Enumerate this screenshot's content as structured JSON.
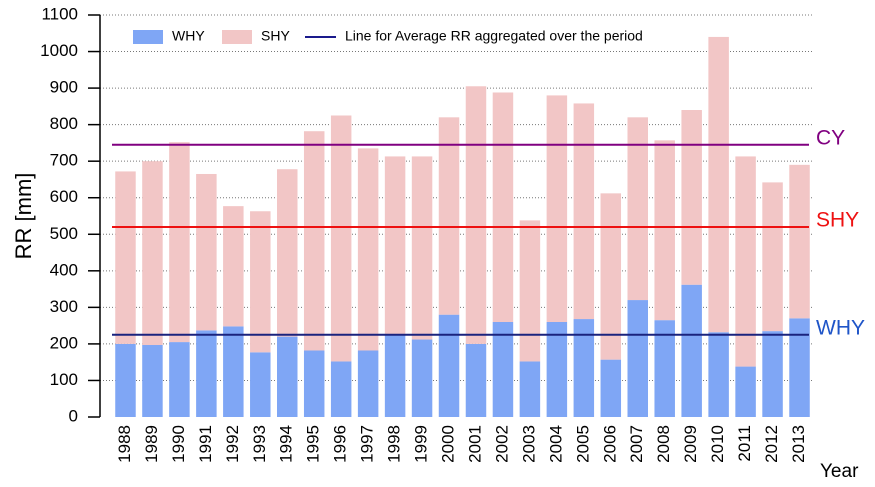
{
  "chart_data": {
    "type": "stacked_bar",
    "ylabel": "RR [mm]",
    "xlabel": "Year",
    "categories": [
      "1988",
      "1989",
      "1990",
      "1991",
      "1992",
      "1993",
      "1994",
      "1995",
      "1996",
      "1997",
      "1998",
      "1999",
      "2000",
      "2001",
      "2002",
      "2003",
      "2004",
      "2005",
      "2006",
      "2007",
      "2008",
      "2009",
      "2010",
      "2011",
      "2012",
      "2013"
    ],
    "series": [
      {
        "name": "WHY",
        "color": "#7fa6f5",
        "values": [
          200,
          197,
          205,
          237,
          248,
          177,
          220,
          182,
          152,
          182,
          225,
          212,
          280,
          200,
          260,
          152,
          260,
          268,
          157,
          320,
          265,
          362,
          232,
          138,
          235,
          270
        ]
      },
      {
        "name": "SHY",
        "color": "#f2c6c6",
        "values": [
          472,
          503,
          547,
          428,
          329,
          386,
          458,
          600,
          673,
          553,
          488,
          501,
          540,
          705,
          628,
          386,
          620,
          590,
          455,
          500,
          492,
          478,
          808,
          575,
          407,
          420
        ]
      }
    ],
    "average_line_legend": "Line for Average RR aggregated over the period",
    "average_line_legend_color": "#1a1a8c",
    "averages": [
      {
        "label": "CY",
        "value": 745,
        "color": "#800080",
        "label_color": "#800080"
      },
      {
        "label": "SHY",
        "value": 520,
        "color": "#ee1111",
        "label_color": "#ee1111"
      },
      {
        "label": "WHY",
        "value": 225,
        "color": "#1a237e",
        "label_color": "#1f55c8"
      }
    ],
    "ylim": [
      0,
      1100
    ],
    "yticks": [
      0,
      100,
      200,
      300,
      400,
      500,
      600,
      700,
      800,
      900,
      1000,
      1100
    ],
    "grid": true
  }
}
